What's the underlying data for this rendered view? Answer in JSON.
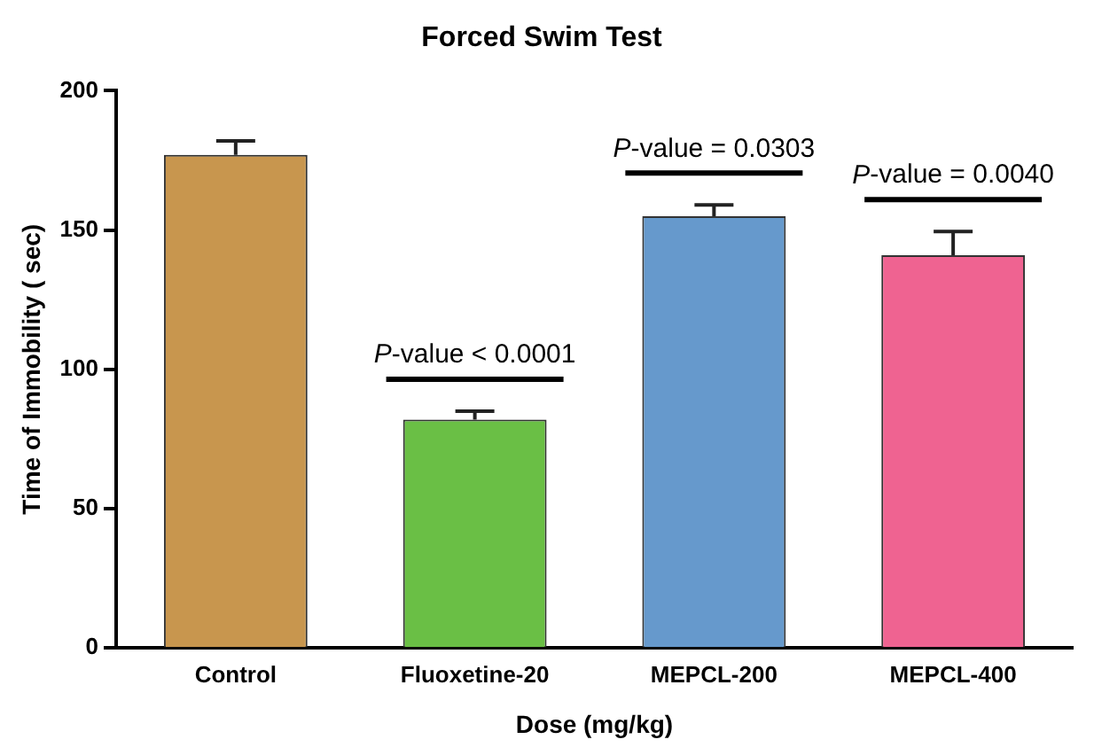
{
  "chart_data": {
    "type": "bar",
    "title": "Forced Swim Test",
    "xlabel": "Dose (mg/kg)",
    "ylabel": "Time of Immobility ( sec)",
    "categories": [
      "Control",
      "Fluoxetine-20",
      "MEPCL-200",
      "MEPCL-400"
    ],
    "values": [
      177,
      82,
      155,
      141
    ],
    "errors": [
      [
        177,
        182
      ],
      [
        82,
        85
      ],
      [
        155,
        159
      ],
      [
        141,
        149.5
      ]
    ],
    "colors": [
      "#c8964e",
      "#6abf45",
      "#6699cc",
      "#ef6391"
    ],
    "ylim": [
      0,
      200
    ],
    "yticks": [
      0,
      50,
      100,
      150,
      200
    ],
    "grid": false,
    "legend": false,
    "annotations": [
      "P-value < 0.0001",
      "P-value = 0.0303",
      "P-value = 0.0040"
    ]
  }
}
